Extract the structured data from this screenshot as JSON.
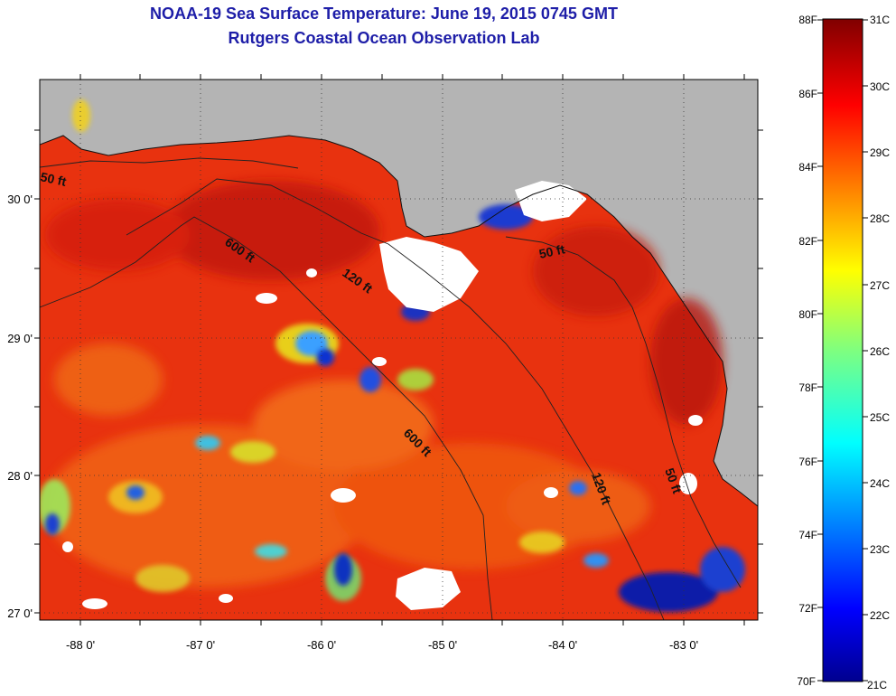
{
  "title_line1": "NOAA-19 Sea Surface Temperature:  June 19, 2015 0745 GMT",
  "title_line2": "Rutgers Coastal Ocean Observation Lab",
  "axes": {
    "lon_labels": [
      "-88 0'",
      "-87 0'",
      "-86 0'",
      "-85 0'",
      "-84 0'",
      "-83 0'"
    ],
    "lat_labels": [
      "30 0'",
      "29 0'",
      "28 0'",
      "27 0'"
    ]
  },
  "contours": {
    "label_50_west": "50 ft",
    "label_600_north": "600 ft",
    "label_120_north": "120 ft",
    "label_50_east": "50 ft",
    "label_600_south": "600 ft",
    "label_120_south": "120 ft",
    "label_50_south": "50 ft"
  },
  "colorbar": {
    "fahrenheit": [
      "88F",
      "86F",
      "84F",
      "82F",
      "80F",
      "78F",
      "76F",
      "74F",
      "72F",
      "70F"
    ],
    "celsius": [
      "31C",
      "30C",
      "29C",
      "28C",
      "27C",
      "26C",
      "25C",
      "24C",
      "23C",
      "22C",
      "21C"
    ]
  },
  "colors": {
    "land": "#b4b4b4",
    "sea_dominant": "#e8320f",
    "title": "#1e1ea8"
  }
}
